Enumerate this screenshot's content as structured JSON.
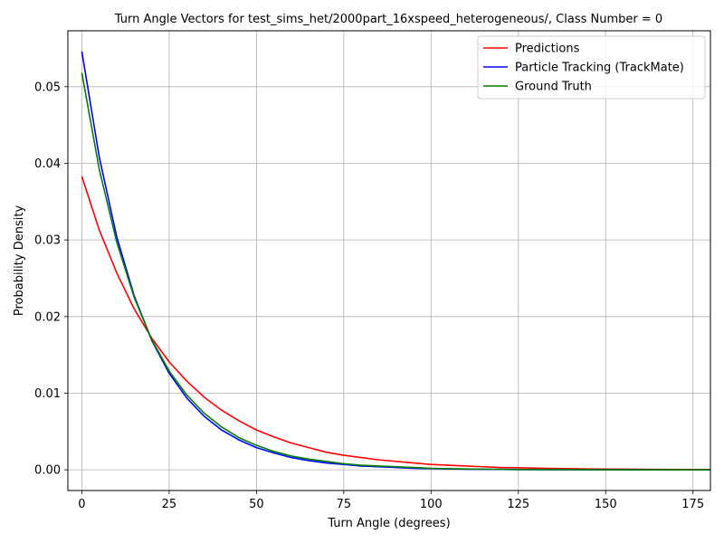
{
  "chart_data": {
    "type": "line",
    "title": "Turn Angle Vectors for test_sims_het/2000part_16xspeed_heterogeneous/, Class Number = 0",
    "xlabel": "Turn Angle (degrees)",
    "ylabel": "Probability Density",
    "xlim": [
      -4,
      180
    ],
    "ylim": [
      -0.0027,
      0.0573
    ],
    "xticks": [
      0,
      25,
      50,
      75,
      100,
      125,
      150,
      175
    ],
    "yticks": [
      0.0,
      0.01,
      0.02,
      0.03,
      0.04,
      0.05
    ],
    "ytick_labels": [
      "0.00",
      "0.01",
      "0.02",
      "0.03",
      "0.04",
      "0.05"
    ],
    "grid": true,
    "legend_position": "top-right",
    "x": [
      0,
      5,
      10,
      15,
      20,
      25,
      30,
      35,
      40,
      45,
      50,
      55,
      60,
      65,
      70,
      75,
      80,
      85,
      90,
      95,
      100,
      105,
      110,
      115,
      120,
      125,
      130,
      135,
      140,
      145,
      150,
      155,
      160,
      165,
      170,
      175,
      180
    ],
    "series": [
      {
        "name": "Predictions",
        "color": "#ff0000",
        "values": [
          0.0383,
          0.0313,
          0.0257,
          0.021,
          0.0172,
          0.0141,
          0.0116,
          0.0095,
          0.0078,
          0.0064,
          0.0052,
          0.0043,
          0.0035,
          0.0029,
          0.0023,
          0.0019,
          0.0016,
          0.0013,
          0.0011,
          0.0009,
          0.0007,
          0.0006,
          0.0005,
          0.0004,
          0.0003,
          0.00027,
          0.00022,
          0.00018,
          0.00015,
          0.00012,
          0.0001,
          8e-05,
          7e-05,
          5e-05,
          4e-05,
          4e-05,
          3e-05
        ]
      },
      {
        "name": "Particle Tracking (TrackMate)",
        "color": "#0000ff",
        "values": [
          0.0546,
          0.0408,
          0.0304,
          0.0227,
          0.0169,
          0.0126,
          0.0094,
          0.007,
          0.0052,
          0.0039,
          0.0029,
          0.0022,
          0.0016,
          0.0012,
          0.0009,
          0.0007,
          0.0005,
          0.0004,
          0.0003,
          0.0002,
          0.00015,
          0.00011,
          8e-05,
          6e-05,
          5e-05,
          3e-05,
          3e-05,
          2e-05,
          1e-05,
          1e-05,
          1e-05,
          1e-05,
          0.0,
          0.0,
          0.0,
          0.0,
          0.0
        ]
      },
      {
        "name": "Ground Truth",
        "color": "#008000",
        "values": [
          0.0518,
          0.0392,
          0.0297,
          0.0225,
          0.017,
          0.0129,
          0.0098,
          0.0074,
          0.0056,
          0.0042,
          0.0032,
          0.0024,
          0.0018,
          0.0014,
          0.0011,
          0.0008,
          0.0006,
          0.0005,
          0.0004,
          0.0003,
          0.0002,
          0.00015,
          0.00011,
          9e-05,
          7e-05,
          5e-05,
          4e-05,
          3e-05,
          2e-05,
          2e-05,
          1e-05,
          1e-05,
          1e-05,
          0.0,
          0.0,
          0.0,
          0.0
        ]
      }
    ]
  }
}
